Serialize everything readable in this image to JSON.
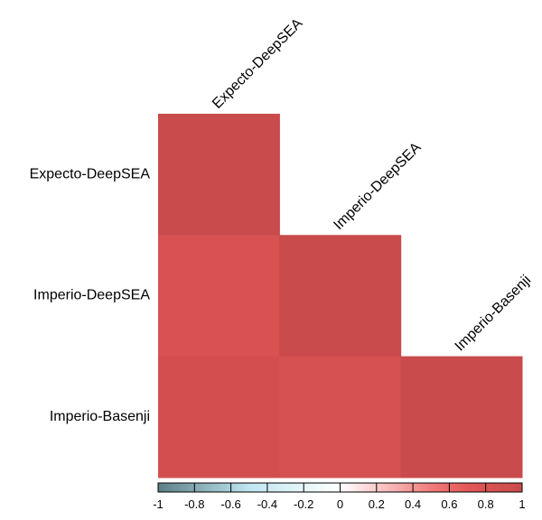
{
  "chart_data": {
    "type": "heatmap",
    "subtype": "lower-triangle correlation matrix",
    "row_labels": [
      "Expecto-DeepSEA",
      "Imperio-DeepSEA",
      "Imperio-Basenji"
    ],
    "column_labels": [
      "Expecto-DeepSEA",
      "Imperio-DeepSEA",
      "Imperio-Basenji"
    ],
    "matrix": [
      [
        1.0,
        null,
        null
      ],
      [
        0.83,
        1.0,
        null
      ],
      [
        0.89,
        0.86,
        1.0
      ]
    ],
    "colorbar": {
      "range": [
        -1,
        1
      ],
      "ticks": [
        "-1",
        "-0.8",
        "-0.6",
        "-0.4",
        "-0.2",
        "0",
        "0.2",
        "0.4",
        "0.6",
        "0.8",
        "1"
      ],
      "colors": {
        "low": "#5c7f87",
        "mid_low": "#bfe6f2",
        "mid": "#ffffff",
        "mid_high": "#f07c7c",
        "high": "#c94b4b"
      }
    }
  }
}
